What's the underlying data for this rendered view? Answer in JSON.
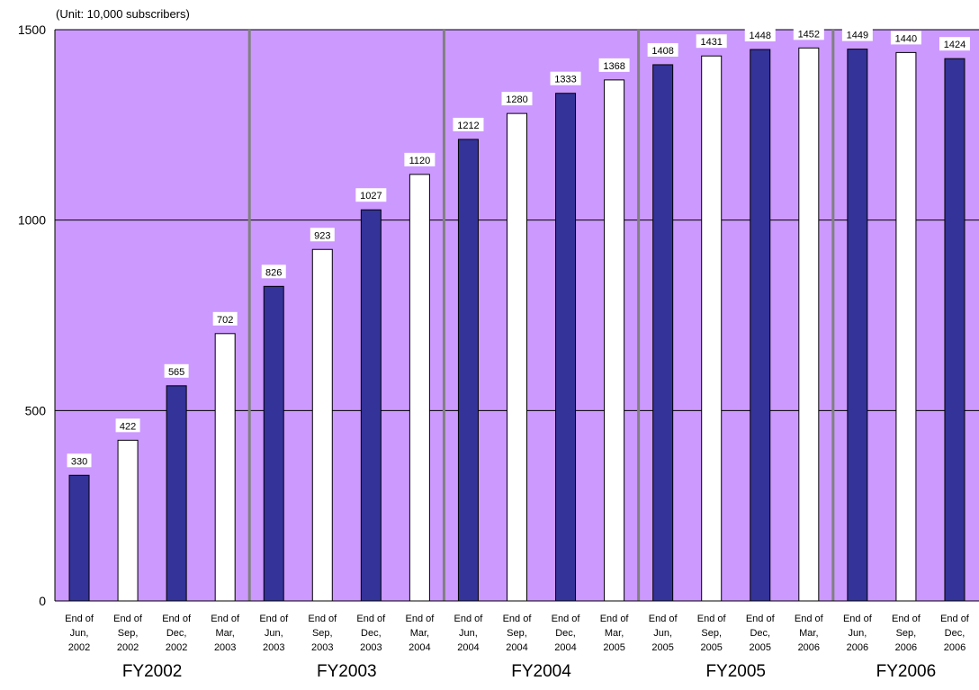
{
  "chart_data": {
    "type": "bar",
    "unit_label": "(Unit: 10,000 subscribers)",
    "ylim": [
      0,
      1500
    ],
    "yticks": [
      0,
      500,
      1000,
      1500
    ],
    "grid": true,
    "categories": [
      [
        "End of",
        "Jun,",
        "2002"
      ],
      [
        "End of",
        "Sep,",
        "2002"
      ],
      [
        "End of",
        "Dec,",
        "2002"
      ],
      [
        "End of",
        "Mar,",
        "2003"
      ],
      [
        "End of",
        "Jun,",
        "2003"
      ],
      [
        "End of",
        "Sep,",
        "2003"
      ],
      [
        "End of",
        "Dec,",
        "2003"
      ],
      [
        "End of",
        "Mar,",
        "2004"
      ],
      [
        "End of",
        "Jun,",
        "2004"
      ],
      [
        "End of",
        "Sep,",
        "2004"
      ],
      [
        "End of",
        "Dec,",
        "2004"
      ],
      [
        "End of",
        "Mar,",
        "2005"
      ],
      [
        "End of",
        "Jun,",
        "2005"
      ],
      [
        "End of",
        "Sep,",
        "2005"
      ],
      [
        "End of",
        "Dec,",
        "2005"
      ],
      [
        "End of",
        "Mar,",
        "2006"
      ],
      [
        "End of",
        "Jun,",
        "2006"
      ],
      [
        "End of",
        "Sep,",
        "2006"
      ],
      [
        "End of",
        "Dec,",
        "2006"
      ]
    ],
    "values": [
      330,
      422,
      565,
      702,
      826,
      923,
      1027,
      1120,
      1212,
      1280,
      1333,
      1368,
      1408,
      1431,
      1448,
      1452,
      1449,
      1440,
      1424
    ],
    "groups": [
      {
        "label": "FY2002",
        "start": 0,
        "end": 3
      },
      {
        "label": "FY2003",
        "start": 4,
        "end": 7
      },
      {
        "label": "FY2004",
        "start": 8,
        "end": 11
      },
      {
        "label": "FY2005",
        "start": 12,
        "end": 15
      },
      {
        "label": "FY2006",
        "start": 16,
        "end": 18
      }
    ],
    "colors": {
      "plot_background": "#cc99ff",
      "bar_dark": "#333399",
      "bar_light": "#ffffff",
      "bar_outline": "#000000",
      "gridline": "#000000",
      "group_divider": "#808080"
    }
  }
}
